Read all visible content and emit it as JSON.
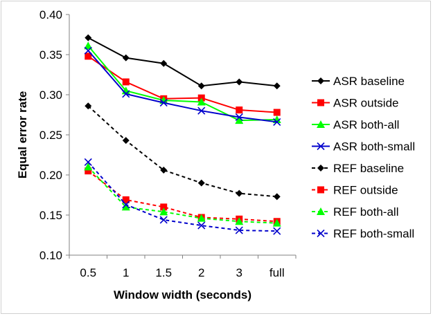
{
  "chart_data": {
    "type": "line",
    "title": "",
    "xlabel": "Window width (seconds)",
    "ylabel": "Equal error rate",
    "categories": [
      "0.5",
      "1",
      "1.5",
      "2",
      "3",
      "full"
    ],
    "ylim": [
      0.1,
      0.4
    ],
    "yticks": [
      "0.10",
      "0.15",
      "0.20",
      "0.25",
      "0.30",
      "0.35",
      "0.40"
    ],
    "grid": false,
    "legend_position": "right",
    "series": [
      {
        "name": "ASR baseline",
        "color": "#000000",
        "dashed": false,
        "marker": "diamond",
        "values": [
          0.371,
          0.346,
          0.339,
          0.311,
          0.316,
          0.311
        ]
      },
      {
        "name": "ASR outside",
        "color": "#ff0000",
        "dashed": false,
        "marker": "square",
        "values": [
          0.348,
          0.316,
          0.295,
          0.296,
          0.281,
          0.278
        ]
      },
      {
        "name": "ASR both-all",
        "color": "#00ff00",
        "dashed": false,
        "marker": "triangle",
        "values": [
          0.361,
          0.305,
          0.293,
          0.291,
          0.268,
          0.269
        ]
      },
      {
        "name": "ASR both-small",
        "color": "#0000cc",
        "dashed": false,
        "marker": "x",
        "values": [
          0.355,
          0.301,
          0.29,
          0.28,
          0.272,
          0.266
        ]
      },
      {
        "name": "REF baseline",
        "color": "#000000",
        "dashed": true,
        "marker": "diamond",
        "values": [
          0.286,
          0.243,
          0.206,
          0.19,
          0.177,
          0.173
        ]
      },
      {
        "name": "REF outside",
        "color": "#ff0000",
        "dashed": true,
        "marker": "square",
        "values": [
          0.205,
          0.169,
          0.16,
          0.147,
          0.145,
          0.142
        ]
      },
      {
        "name": "REF both-all",
        "color": "#00ff00",
        "dashed": true,
        "marker": "triangle",
        "values": [
          0.21,
          0.16,
          0.154,
          0.146,
          0.142,
          0.14
        ]
      },
      {
        "name": "REF both-small",
        "color": "#0000cc",
        "dashed": true,
        "marker": "x",
        "values": [
          0.216,
          0.163,
          0.144,
          0.137,
          0.131,
          0.13
        ]
      }
    ]
  }
}
